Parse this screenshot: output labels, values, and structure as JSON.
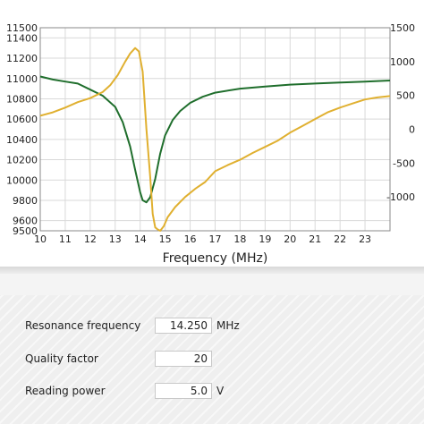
{
  "chart_data": {
    "type": "line",
    "xlabel": "Frequency (MHz)",
    "xlim": [
      10,
      24
    ],
    "x_ticks": [
      10,
      11,
      12,
      13,
      14,
      15,
      16,
      17,
      18,
      19,
      20,
      21,
      22,
      23
    ],
    "ylim_left": [
      9500,
      11500
    ],
    "y_left_ticks": [
      9500,
      9600,
      9800,
      10000,
      10200,
      10400,
      10600,
      10800,
      11000,
      11200,
      11400,
      11500
    ],
    "ylim_right": [
      -1500,
      1500
    ],
    "y_right_ticks": [
      -1000,
      -500,
      0,
      500,
      1000,
      1500
    ],
    "grid": true,
    "series": [
      {
        "axis": "left",
        "color": "#1f6e2c",
        "x": [
          10,
          10.5,
          11,
          11.5,
          12,
          12.5,
          13,
          13.3,
          13.6,
          13.8,
          14.0,
          14.1,
          14.25,
          14.4,
          14.6,
          14.8,
          15.0,
          15.3,
          15.6,
          16,
          16.5,
          17,
          18,
          19,
          20,
          21,
          22,
          23,
          24
        ],
        "y": [
          11020,
          10990,
          10970,
          10950,
          10890,
          10830,
          10720,
          10570,
          10330,
          10100,
          9880,
          9800,
          9780,
          9830,
          10010,
          10260,
          10440,
          10590,
          10680,
          10760,
          10820,
          10860,
          10900,
          10920,
          10940,
          10950,
          10960,
          10970,
          10980
        ]
      },
      {
        "axis": "right",
        "color": "#e0b030",
        "x": [
          10,
          10.5,
          11,
          11.5,
          12,
          12.5,
          12.8,
          13.1,
          13.4,
          13.6,
          13.8,
          13.95,
          14.1,
          14.25,
          14.4,
          14.5,
          14.6,
          14.7,
          14.8,
          14.95,
          15.1,
          15.4,
          15.8,
          16.2,
          16.6,
          17,
          17.5,
          18,
          18.5,
          19,
          19.5,
          20,
          20.5,
          21,
          21.5,
          22,
          22.5,
          23,
          23.5,
          24
        ],
        "y": [
          200,
          250,
          320,
          400,
          460,
          550,
          650,
          800,
          1000,
          1120,
          1200,
          1150,
          850,
          0,
          -700,
          -1250,
          -1450,
          -1480,
          -1500,
          -1430,
          -1300,
          -1150,
          -1000,
          -880,
          -780,
          -620,
          -530,
          -450,
          -350,
          -260,
          -170,
          -50,
          50,
          150,
          250,
          320,
          380,
          440,
          470,
          490
        ]
      }
    ]
  },
  "controls": {
    "resonance_label": "Resonance frequency",
    "resonance_value": "14.250",
    "resonance_unit": "MHz",
    "quality_label": "Quality factor",
    "quality_value": "20",
    "power_label": "Reading power",
    "power_value": "5.0",
    "power_unit": "V"
  }
}
